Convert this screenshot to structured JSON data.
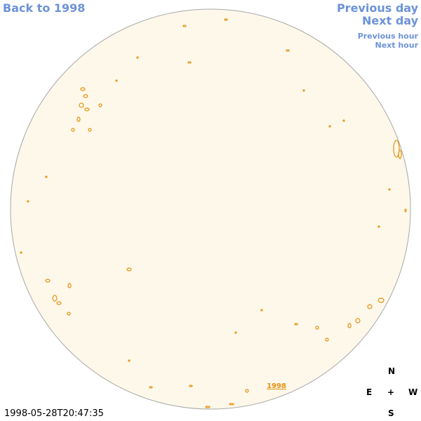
{
  "nav": {
    "back": "Back to 1998",
    "previous_day": "Previous day",
    "next_day": "Next day",
    "previous_hour": "Previous hour",
    "next_hour": "Next hour"
  },
  "timestamp": "1998-05-28T20:47:35",
  "overlay_label": "1998",
  "compass": {
    "north": "N",
    "east": "E",
    "center": "+",
    "west": "W",
    "south": "S"
  }
}
